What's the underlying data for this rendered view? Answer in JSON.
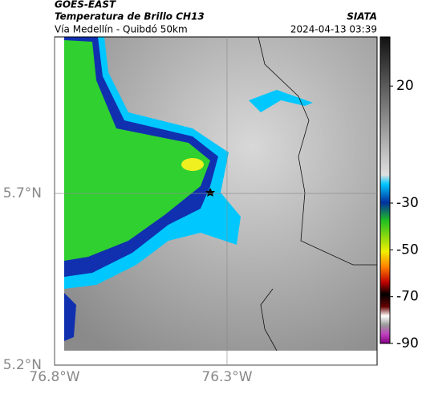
{
  "header": {
    "source": "GOES-EAST",
    "title": "Temperatura de Brillo CH13",
    "brand": "SIATA",
    "route": "Vía Medellín - Quibdó 50km",
    "datetime": "2024-04-13 03:39"
  },
  "map": {
    "xlim": [
      -76.8,
      -75.865
    ],
    "ylim": [
      5.2,
      6.156
    ],
    "xticks": [
      {
        "value": -76.8,
        "label": "76.8°W"
      },
      {
        "value": -76.3,
        "label": "76.3°W"
      }
    ],
    "yticks": [
      {
        "value": 5.7,
        "label": "5.7°N"
      },
      {
        "value": 5.2,
        "label": "5.2°N"
      }
    ],
    "grid": true
  },
  "colorbar": {
    "ylim": [
      -90,
      41
    ],
    "yticks": [
      20,
      -30,
      -50,
      -70,
      -90
    ]
  }
}
